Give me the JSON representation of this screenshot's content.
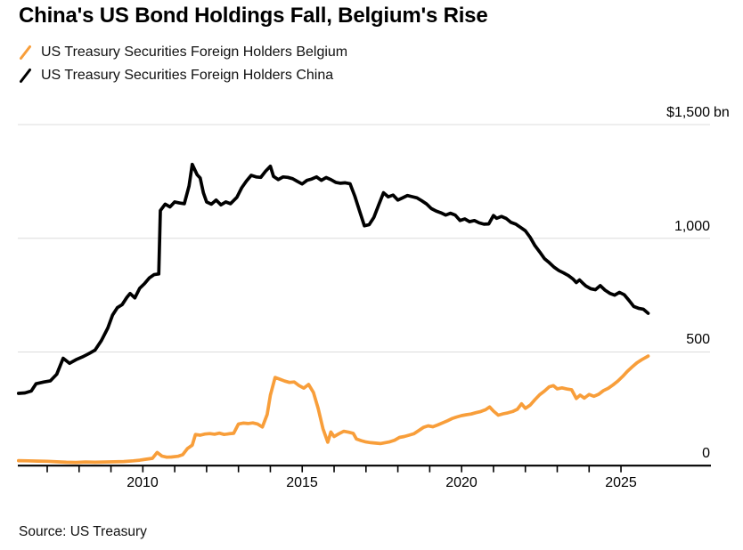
{
  "header": {
    "title": "China's US Bond Holdings Fall, Belgium's Rise"
  },
  "legend": {
    "items": [
      {
        "label": "US Treasury Securities Foreign Holders Belgium",
        "color": "#F89E3A"
      },
      {
        "label": "US Treasury Securities Foreign Holders China",
        "color": "#000000"
      }
    ]
  },
  "source": "Source: US Treasury",
  "chart_data": {
    "type": "line",
    "title": "China's US Bond Holdings Fall, Belgium's Rise",
    "unit": "$ bn",
    "grid": "horizontal",
    "legend_position": "top-left",
    "colors": {
      "belgium": "#F89E3A",
      "china": "#000000",
      "gridline": "#DCDCDC",
      "axis": "#000000"
    },
    "y_axis": {
      "range": [
        0,
        1500
      ],
      "unit_label": "bn",
      "ticks": [
        {
          "value": 1500,
          "label": "$1,500"
        },
        {
          "value": 1000,
          "label": "1,000"
        },
        {
          "value": 500,
          "label": "500"
        },
        {
          "value": 0,
          "label": "0"
        }
      ]
    },
    "x_axis": {
      "range": [
        2006.05,
        2026
      ],
      "tick_years": [
        2007,
        2008,
        2009,
        2010,
        2011,
        2012,
        2013,
        2014,
        2015,
        2016,
        2017,
        2018,
        2019,
        2020,
        2021,
        2022,
        2023,
        2024,
        2025
      ],
      "labels": [
        "2010",
        "2015",
        "2020",
        "2025"
      ],
      "label_years": [
        2010,
        2015,
        2020,
        2025
      ]
    },
    "series": [
      {
        "name": "US Treasury Securities Foreign Holders Belgium",
        "color": "#F89E3A",
        "points": [
          [
            2006.1,
            22
          ],
          [
            2006.4,
            21
          ],
          [
            2006.7,
            20
          ],
          [
            2007.0,
            19
          ],
          [
            2007.3,
            17
          ],
          [
            2007.6,
            15
          ],
          [
            2007.9,
            14
          ],
          [
            2008.2,
            16
          ],
          [
            2008.5,
            15
          ],
          [
            2008.8,
            16
          ],
          [
            2009.1,
            17
          ],
          [
            2009.4,
            18
          ],
          [
            2009.7,
            21
          ],
          [
            2009.9,
            24
          ],
          [
            2010.1,
            28
          ],
          [
            2010.3,
            32
          ],
          [
            2010.45,
            58
          ],
          [
            2010.6,
            42
          ],
          [
            2010.75,
            37
          ],
          [
            2010.9,
            38
          ],
          [
            2011.1,
            41
          ],
          [
            2011.25,
            48
          ],
          [
            2011.4,
            75
          ],
          [
            2011.55,
            90
          ],
          [
            2011.65,
            137
          ],
          [
            2011.8,
            134
          ],
          [
            2011.95,
            139
          ],
          [
            2012.1,
            141
          ],
          [
            2012.25,
            138
          ],
          [
            2012.4,
            143
          ],
          [
            2012.55,
            137
          ],
          [
            2012.7,
            140
          ],
          [
            2012.85,
            142
          ],
          [
            2013.0,
            183
          ],
          [
            2013.15,
            187
          ],
          [
            2013.3,
            185
          ],
          [
            2013.45,
            188
          ],
          [
            2013.6,
            183
          ],
          [
            2013.75,
            170
          ],
          [
            2013.9,
            225
          ],
          [
            2014.0,
            310
          ],
          [
            2014.15,
            388
          ],
          [
            2014.3,
            380
          ],
          [
            2014.45,
            372
          ],
          [
            2014.6,
            366
          ],
          [
            2014.75,
            368
          ],
          [
            2014.9,
            352
          ],
          [
            2015.05,
            341
          ],
          [
            2015.2,
            357
          ],
          [
            2015.35,
            322
          ],
          [
            2015.5,
            252
          ],
          [
            2015.65,
            163
          ],
          [
            2015.8,
            103
          ],
          [
            2015.9,
            148
          ],
          [
            2016.0,
            128
          ],
          [
            2016.15,
            140
          ],
          [
            2016.3,
            151
          ],
          [
            2016.45,
            147
          ],
          [
            2016.6,
            142
          ],
          [
            2016.7,
            117
          ],
          [
            2016.85,
            110
          ],
          [
            2017.0,
            104
          ],
          [
            2017.15,
            101
          ],
          [
            2017.3,
            99
          ],
          [
            2017.45,
            97
          ],
          [
            2017.6,
            101
          ],
          [
            2017.75,
            105
          ],
          [
            2017.9,
            112
          ],
          [
            2018.05,
            124
          ],
          [
            2018.2,
            128
          ],
          [
            2018.35,
            134
          ],
          [
            2018.5,
            140
          ],
          [
            2018.65,
            154
          ],
          [
            2018.8,
            168
          ],
          [
            2018.95,
            175
          ],
          [
            2019.1,
            171
          ],
          [
            2019.25,
            179
          ],
          [
            2019.4,
            188
          ],
          [
            2019.55,
            197
          ],
          [
            2019.7,
            207
          ],
          [
            2019.85,
            214
          ],
          [
            2020.0,
            220
          ],
          [
            2020.15,
            224
          ],
          [
            2020.3,
            227
          ],
          [
            2020.45,
            233
          ],
          [
            2020.6,
            238
          ],
          [
            2020.75,
            246
          ],
          [
            2020.88,
            258
          ],
          [
            2021.0,
            240
          ],
          [
            2021.15,
            222
          ],
          [
            2021.3,
            228
          ],
          [
            2021.45,
            232
          ],
          [
            2021.6,
            238
          ],
          [
            2021.75,
            248
          ],
          [
            2021.88,
            272
          ],
          [
            2022.0,
            252
          ],
          [
            2022.15,
            266
          ],
          [
            2022.3,
            290
          ],
          [
            2022.45,
            312
          ],
          [
            2022.6,
            328
          ],
          [
            2022.75,
            347
          ],
          [
            2022.88,
            352
          ],
          [
            2023.0,
            338
          ],
          [
            2023.15,
            342
          ],
          [
            2023.3,
            337
          ],
          [
            2023.45,
            334
          ],
          [
            2023.6,
            295
          ],
          [
            2023.72,
            310
          ],
          [
            2023.85,
            297
          ],
          [
            2024.0,
            313
          ],
          [
            2024.15,
            305
          ],
          [
            2024.3,
            314
          ],
          [
            2024.45,
            330
          ],
          [
            2024.6,
            340
          ],
          [
            2024.75,
            355
          ],
          [
            2024.9,
            372
          ],
          [
            2025.05,
            392
          ],
          [
            2025.2,
            415
          ],
          [
            2025.35,
            434
          ],
          [
            2025.5,
            452
          ],
          [
            2025.65,
            466
          ],
          [
            2025.85,
            482
          ]
        ]
      },
      {
        "name": "US Treasury Securities Foreign Holders China",
        "color": "#000000",
        "points": [
          [
            2006.1,
            318
          ],
          [
            2006.3,
            320
          ],
          [
            2006.5,
            328
          ],
          [
            2006.65,
            360
          ],
          [
            2006.9,
            368
          ],
          [
            2007.1,
            373
          ],
          [
            2007.3,
            402
          ],
          [
            2007.5,
            472
          ],
          [
            2007.7,
            450
          ],
          [
            2007.9,
            466
          ],
          [
            2008.1,
            478
          ],
          [
            2008.3,
            492
          ],
          [
            2008.5,
            508
          ],
          [
            2008.7,
            550
          ],
          [
            2008.9,
            605
          ],
          [
            2009.05,
            662
          ],
          [
            2009.2,
            695
          ],
          [
            2009.35,
            708
          ],
          [
            2009.5,
            740
          ],
          [
            2009.6,
            757
          ],
          [
            2009.75,
            738
          ],
          [
            2009.9,
            780
          ],
          [
            2010.05,
            800
          ],
          [
            2010.2,
            825
          ],
          [
            2010.35,
            840
          ],
          [
            2010.5,
            843
          ],
          [
            2010.55,
            1122
          ],
          [
            2010.7,
            1150
          ],
          [
            2010.85,
            1138
          ],
          [
            2011.0,
            1160
          ],
          [
            2011.15,
            1155
          ],
          [
            2011.3,
            1152
          ],
          [
            2011.45,
            1230
          ],
          [
            2011.55,
            1325
          ],
          [
            2011.7,
            1280
          ],
          [
            2011.8,
            1265
          ],
          [
            2011.9,
            1200
          ],
          [
            2012.0,
            1160
          ],
          [
            2012.15,
            1150
          ],
          [
            2012.3,
            1168
          ],
          [
            2012.45,
            1147
          ],
          [
            2012.6,
            1160
          ],
          [
            2012.75,
            1152
          ],
          [
            2012.95,
            1180
          ],
          [
            2013.1,
            1222
          ],
          [
            2013.25,
            1252
          ],
          [
            2013.4,
            1277
          ],
          [
            2013.55,
            1270
          ],
          [
            2013.7,
            1268
          ],
          [
            2013.85,
            1295
          ],
          [
            2014.0,
            1317
          ],
          [
            2014.1,
            1272
          ],
          [
            2014.25,
            1258
          ],
          [
            2014.4,
            1270
          ],
          [
            2014.55,
            1268
          ],
          [
            2014.7,
            1262
          ],
          [
            2014.85,
            1250
          ],
          [
            2015.0,
            1239
          ],
          [
            2015.15,
            1255
          ],
          [
            2015.3,
            1261
          ],
          [
            2015.45,
            1270
          ],
          [
            2015.6,
            1255
          ],
          [
            2015.75,
            1267
          ],
          [
            2015.9,
            1258
          ],
          [
            2016.05,
            1246
          ],
          [
            2016.2,
            1242
          ],
          [
            2016.35,
            1244
          ],
          [
            2016.5,
            1240
          ],
          [
            2016.65,
            1185
          ],
          [
            2016.8,
            1120
          ],
          [
            2016.95,
            1055
          ],
          [
            2017.1,
            1060
          ],
          [
            2017.25,
            1092
          ],
          [
            2017.4,
            1147
          ],
          [
            2017.55,
            1200
          ],
          [
            2017.7,
            1182
          ],
          [
            2017.85,
            1190
          ],
          [
            2018.0,
            1168
          ],
          [
            2018.15,
            1178
          ],
          [
            2018.3,
            1188
          ],
          [
            2018.45,
            1183
          ],
          [
            2018.6,
            1178
          ],
          [
            2018.75,
            1165
          ],
          [
            2018.9,
            1151
          ],
          [
            2019.05,
            1131
          ],
          [
            2019.2,
            1120
          ],
          [
            2019.35,
            1112
          ],
          [
            2019.5,
            1102
          ],
          [
            2019.65,
            1110
          ],
          [
            2019.8,
            1102
          ],
          [
            2019.95,
            1078
          ],
          [
            2020.1,
            1085
          ],
          [
            2020.25,
            1073
          ],
          [
            2020.4,
            1078
          ],
          [
            2020.55,
            1068
          ],
          [
            2020.7,
            1062
          ],
          [
            2020.85,
            1063
          ],
          [
            2021.0,
            1100
          ],
          [
            2021.1,
            1088
          ],
          [
            2021.25,
            1096
          ],
          [
            2021.4,
            1087
          ],
          [
            2021.55,
            1070
          ],
          [
            2021.7,
            1062
          ],
          [
            2021.85,
            1048
          ],
          [
            2022.0,
            1033
          ],
          [
            2022.15,
            1004
          ],
          [
            2022.3,
            968
          ],
          [
            2022.45,
            940
          ],
          [
            2022.6,
            910
          ],
          [
            2022.75,
            893
          ],
          [
            2022.9,
            873
          ],
          [
            2023.05,
            858
          ],
          [
            2023.2,
            848
          ],
          [
            2023.35,
            836
          ],
          [
            2023.5,
            820
          ],
          [
            2023.6,
            805
          ],
          [
            2023.7,
            817
          ],
          [
            2023.8,
            803
          ],
          [
            2023.9,
            790
          ],
          [
            2024.05,
            778
          ],
          [
            2024.2,
            774
          ],
          [
            2024.35,
            792
          ],
          [
            2024.5,
            772
          ],
          [
            2024.65,
            758
          ],
          [
            2024.8,
            750
          ],
          [
            2024.95,
            762
          ],
          [
            2025.1,
            752
          ],
          [
            2025.25,
            727
          ],
          [
            2025.4,
            700
          ],
          [
            2025.55,
            692
          ],
          [
            2025.7,
            688
          ],
          [
            2025.85,
            670
          ]
        ]
      }
    ]
  }
}
